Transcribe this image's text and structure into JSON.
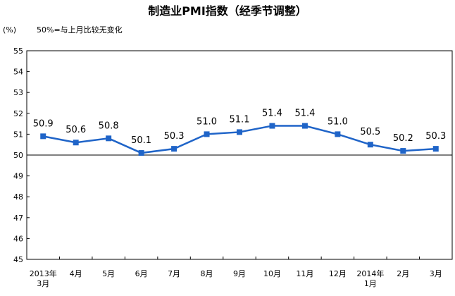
{
  "chart_data": {
    "type": "line",
    "title": "制造业PMI指数（经季节调整）",
    "y_unit": "(%)",
    "note": "50%=与上月比较无变化",
    "categories": [
      [
        "2013年",
        "3月"
      ],
      [
        "4月"
      ],
      [
        "5月"
      ],
      [
        "6月"
      ],
      [
        "7月"
      ],
      [
        "8月"
      ],
      [
        "9月"
      ],
      [
        "10月"
      ],
      [
        "11月"
      ],
      [
        "12月"
      ],
      [
        "2014年",
        "1月"
      ],
      [
        "2月"
      ],
      [
        "3月"
      ]
    ],
    "values": [
      50.9,
      50.6,
      50.8,
      50.1,
      50.3,
      51.0,
      51.1,
      51.4,
      51.4,
      51.0,
      50.5,
      50.2,
      50.3
    ],
    "data_labels": [
      "50.9",
      "50.6",
      "50.8",
      "50.1",
      "50.3",
      "51.0",
      "51.1",
      "51.4",
      "51.4",
      "51.0",
      "50.5",
      "50.2",
      "50.3"
    ],
    "ylim": [
      45,
      55
    ],
    "yticks": [
      45,
      46,
      47,
      48,
      49,
      50,
      51,
      52,
      53,
      54,
      55
    ],
    "reference_line": 50,
    "grid": false,
    "colors": {
      "line": "#1f64c8",
      "marker": "#1f64c8",
      "axis": "#000000"
    }
  }
}
